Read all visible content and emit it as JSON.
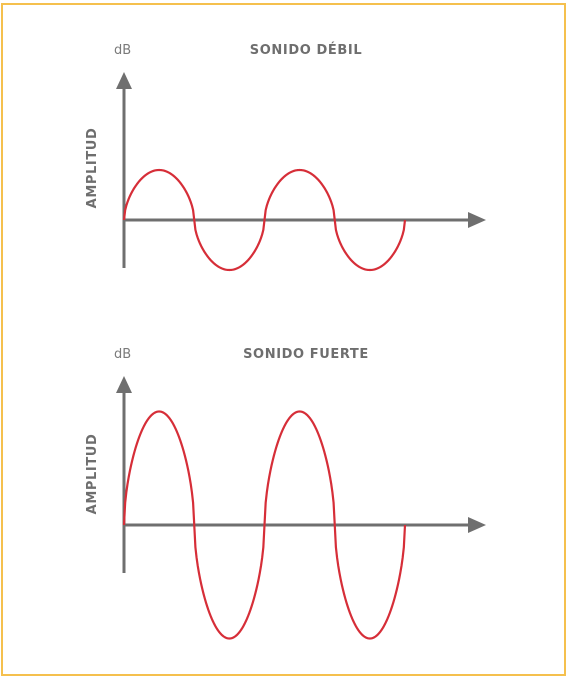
{
  "colors": {
    "frame": "#f5c04e",
    "axis": "#6f6f6f",
    "wave": "#d62e38",
    "text": "#6e6e6e"
  },
  "panels": [
    {
      "unit": "dB",
      "title": "SONIDO DÉBIL",
      "ylabel": "AMPLITUD",
      "relative_amplitude": 1,
      "cycles": 2
    },
    {
      "unit": "dB",
      "title": "SONIDO FUERTE",
      "ylabel": "AMPLITUD",
      "relative_amplitude": 2.27,
      "cycles": 2
    }
  ]
}
